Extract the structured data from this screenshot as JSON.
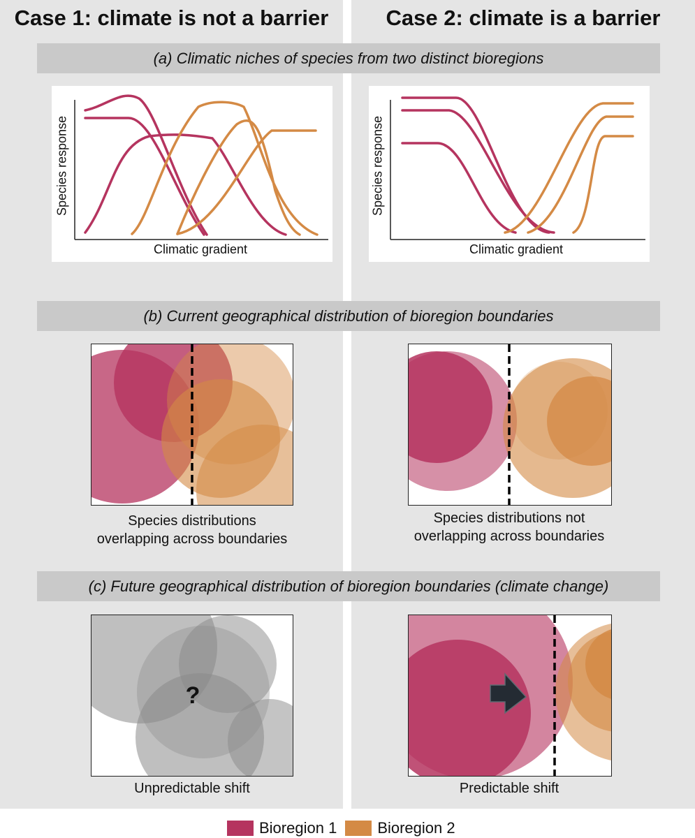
{
  "cases": [
    {
      "title": "Case 1: climate is not a barrier"
    },
    {
      "title": "Case 2: climate is a barrier"
    }
  ],
  "panels": {
    "a": {
      "title": "(a) Climatic niches of species from two distinct bioregions"
    },
    "b": {
      "title": "(b) Current geographical distribution of bioregion boundaries"
    },
    "c": {
      "title": "(c) Future geographical distribution of bioregion boundaries (climate change)"
    }
  },
  "axes": {
    "y_label": "Species response",
    "x_label": "Climatic gradient"
  },
  "captions": {
    "b_left_line1": "Species distributions",
    "b_left_line2": "overlapping across boundaries",
    "b_right_line1": "Species distributions not",
    "b_right_line2": "overlapping across boundaries",
    "c_left": "Unpredictable shift",
    "c_right": "Predictable shift"
  },
  "question_mark": "?",
  "legend": [
    {
      "label": "Bioregion 1",
      "color": "#b5345f"
    },
    {
      "label": "Bioregion 2",
      "color": "#d48a45"
    }
  ],
  "colors": {
    "bioregion1": "#b5345f",
    "bioregion2": "#d48a45",
    "grey_circle": "#8a8a8a",
    "arrow": "#242b33"
  }
}
